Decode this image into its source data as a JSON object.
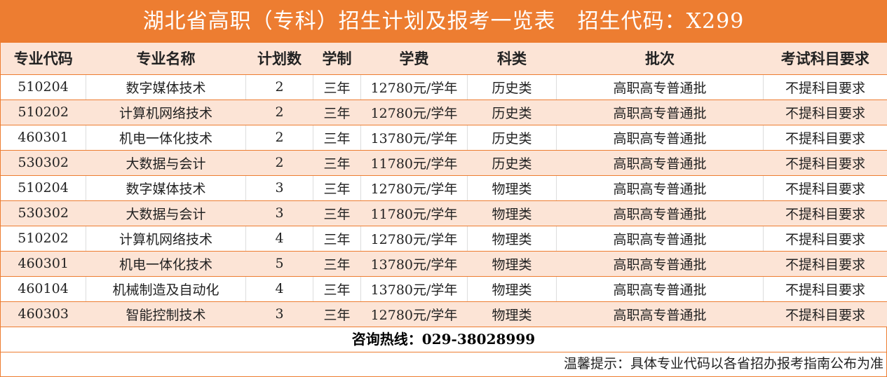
{
  "title": "湖北省高职（专科）招生计划及报考一览表　招生代码：X299",
  "headers": [
    "专业代码",
    "专业名称",
    "计划数",
    "学制",
    "学费",
    "科类",
    "批次",
    "考试科目要求"
  ],
  "rows": [
    [
      "510204",
      "数字媒体技术",
      "2",
      "三年",
      "12780元/学年",
      "历史类",
      "高职高专普通批",
      "不提科目要求"
    ],
    [
      "510202",
      "计算机网络技术",
      "2",
      "三年",
      "12780元/学年",
      "历史类",
      "高职高专普通批",
      "不提科目要求"
    ],
    [
      "460301",
      "机电一体化技术",
      "2",
      "三年",
      "13780元/学年",
      "历史类",
      "高职高专普通批",
      "不提科目要求"
    ],
    [
      "530302",
      "大数据与会计",
      "2",
      "三年",
      "11780元/学年",
      "历史类",
      "高职高专普通批",
      "不提科目要求"
    ],
    [
      "510204",
      "数字媒体技术",
      "3",
      "三年",
      "12780元/学年",
      "物理类",
      "高职高专普通批",
      "不提科目要求"
    ],
    [
      "530302",
      "大数据与会计",
      "3",
      "三年",
      "11780元/学年",
      "物理类",
      "高职高专普通批",
      "不提科目要求"
    ],
    [
      "510202",
      "计算机网络技术",
      "4",
      "三年",
      "12780元/学年",
      "物理类",
      "高职高专普通批",
      "不提科目要求"
    ],
    [
      "460301",
      "机电一体化技术",
      "5",
      "三年",
      "13780元/学年",
      "物理类",
      "高职高专普通批",
      "不提科目要求"
    ],
    [
      "460104",
      "机械制造及自动化",
      "4",
      "三年",
      "13780元/学年",
      "物理类",
      "高职高专普通批",
      "不提科目要求"
    ],
    [
      "460303",
      "智能控制技术",
      "3",
      "三年",
      "12780元/学年",
      "物理类",
      "高职高专普通批",
      "不提科目要求"
    ]
  ],
  "hotline": "咨询热线：029-38028999",
  "note": "温馨提示：具体专业代码以各省招办报考指南公布为准",
  "colors": {
    "accent": "#ED7D31",
    "row_alt": "#FCE4D6"
  }
}
